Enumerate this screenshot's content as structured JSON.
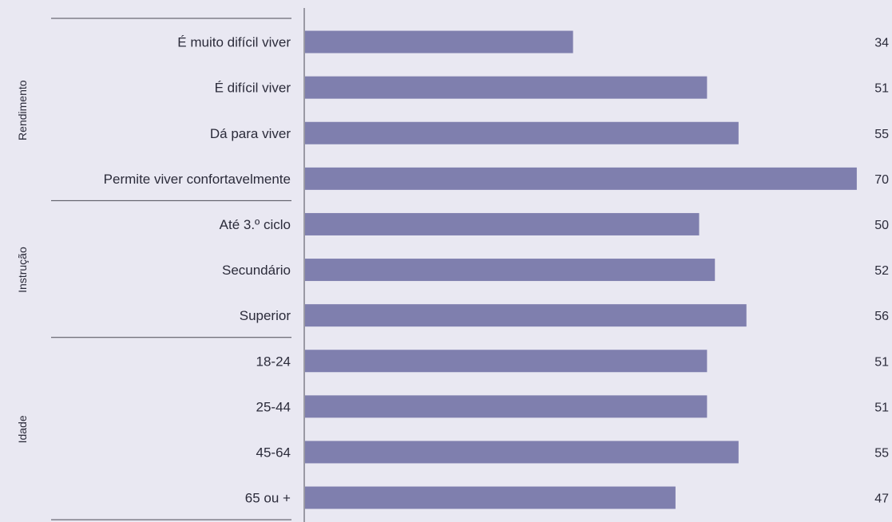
{
  "colors": {
    "background": "#e9e8f2",
    "bar": "#7f7fae",
    "rule": "#4a4a55",
    "text": "#2b2b3a"
  },
  "chart_data": {
    "type": "bar",
    "orientation": "horizontal",
    "title": "",
    "xlabel": "",
    "ylabel": "",
    "xlim": [
      0,
      70
    ],
    "grid": false,
    "legend": "none",
    "groups": [
      {
        "label": "Rendimento",
        "categories": [
          "É muito difícil viver",
          "É difícil viver",
          "Dá para viver",
          "Permite viver confortavelmente"
        ],
        "values": [
          34,
          51,
          55,
          70
        ]
      },
      {
        "label": "Instrução",
        "categories": [
          "Até 3.º ciclo",
          "Secundário",
          "Superior"
        ],
        "values": [
          50,
          52,
          56
        ]
      },
      {
        "label": "Idade",
        "categories": [
          "18-24",
          "25-44",
          "45-64",
          "65 ou +"
        ],
        "values": [
          51,
          51,
          55,
          47
        ]
      }
    ]
  }
}
